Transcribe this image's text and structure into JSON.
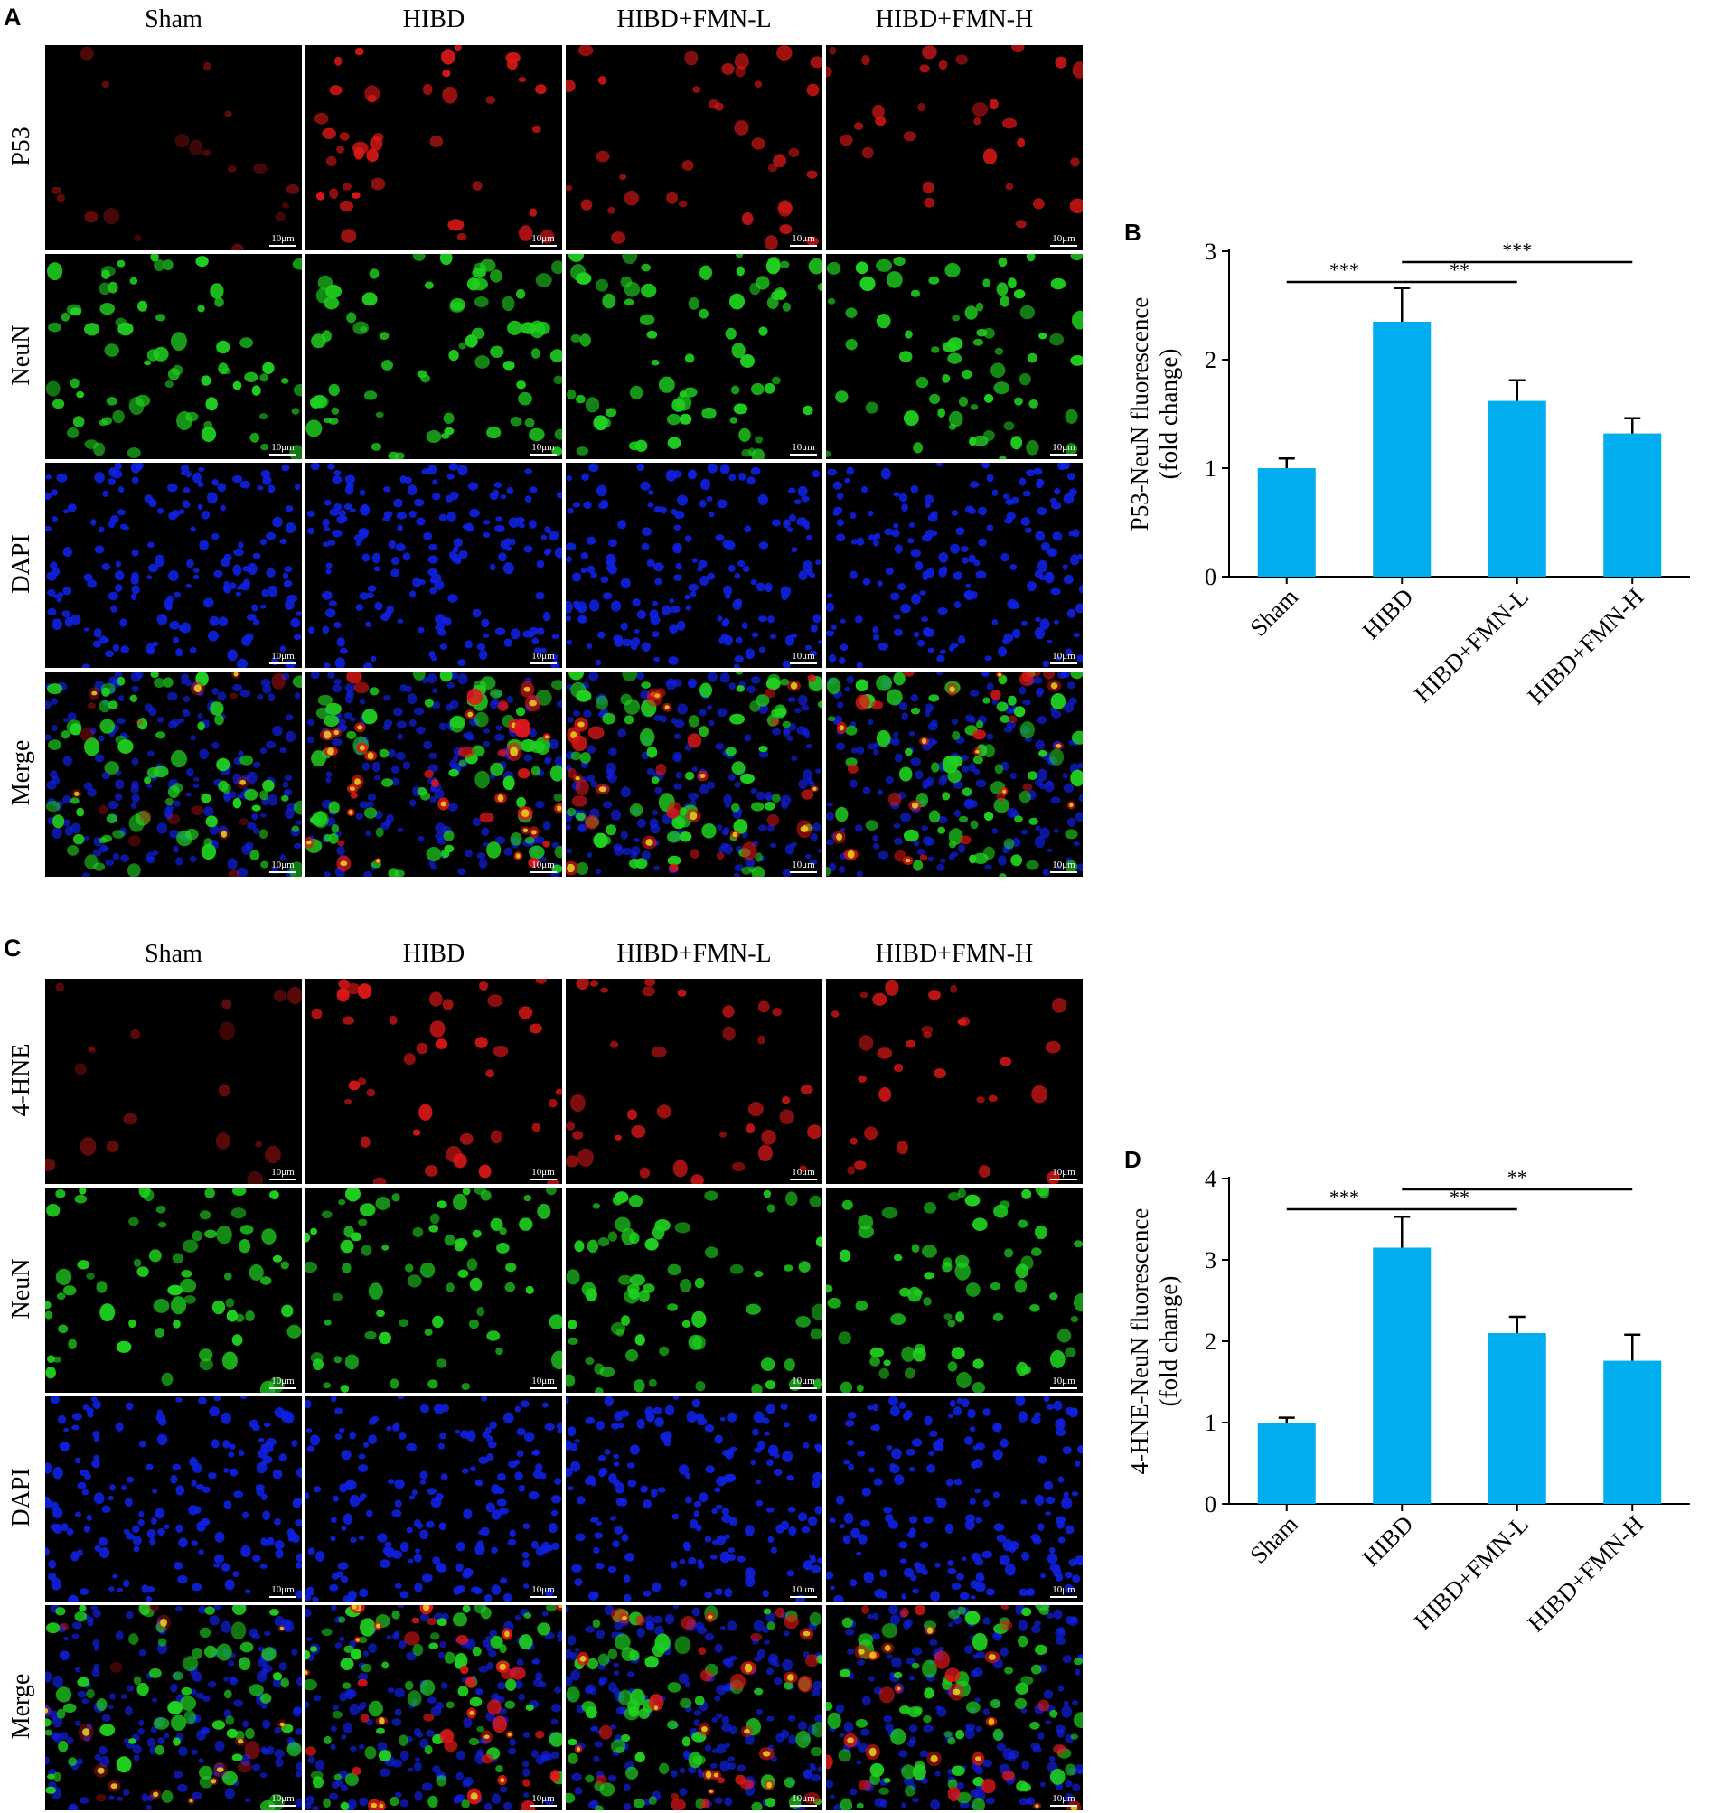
{
  "figure": {
    "columns": [
      "Sham",
      "HIBD",
      "HIBD+FMN-L",
      "HIBD+FMN-H"
    ],
    "scale_bar": "10μm",
    "panel_A": {
      "letter": "A",
      "rows": [
        "P53",
        "NeuN",
        "DAPI",
        "Merge"
      ]
    },
    "panel_C": {
      "letter": "C",
      "rows": [
        "4-HNE",
        "NeuN",
        "DAPI",
        "Merge"
      ]
    },
    "colors": {
      "red_channel": "#e01818",
      "green_channel": "#20d020",
      "blue_channel": "#1020e0",
      "bar": "#00aeef"
    }
  },
  "chart_data": [
    {
      "panel": "B",
      "type": "bar",
      "categories": [
        "Sham",
        "HIBD",
        "HIBD+FMN-L",
        "HIBD+FMN-H"
      ],
      "values": [
        1.0,
        2.35,
        1.62,
        1.32
      ],
      "errors": [
        0.09,
        0.31,
        0.19,
        0.14
      ],
      "ylabel": "P53-NeuN fluorescence",
      "ylabel2": "(fold change)",
      "ylim": [
        0,
        3
      ],
      "yticks": [
        "0",
        "1",
        "2",
        "3"
      ],
      "significance": [
        {
          "from": 0,
          "to": 1,
          "label": "***"
        },
        {
          "from": 1,
          "to": 2,
          "label": "**"
        },
        {
          "from": 1,
          "to": 3,
          "label": "***"
        }
      ],
      "color": "#00aeef"
    },
    {
      "panel": "D",
      "type": "bar",
      "categories": [
        "Sham",
        "HIBD",
        "HIBD+FMN-L",
        "HIBD+FMN-H"
      ],
      "values": [
        1.0,
        3.15,
        2.1,
        1.76
      ],
      "errors": [
        0.06,
        0.38,
        0.2,
        0.32
      ],
      "ylabel": "4-HNE-NeuN fluorescence",
      "ylabel2": "(fold change)",
      "ylim": [
        0,
        4
      ],
      "yticks": [
        "0",
        "1",
        "2",
        "3",
        "4"
      ],
      "significance": [
        {
          "from": 0,
          "to": 1,
          "label": "***"
        },
        {
          "from": 1,
          "to": 2,
          "label": "**"
        },
        {
          "from": 1,
          "to": 3,
          "label": "**"
        }
      ],
      "color": "#00aeef"
    }
  ]
}
